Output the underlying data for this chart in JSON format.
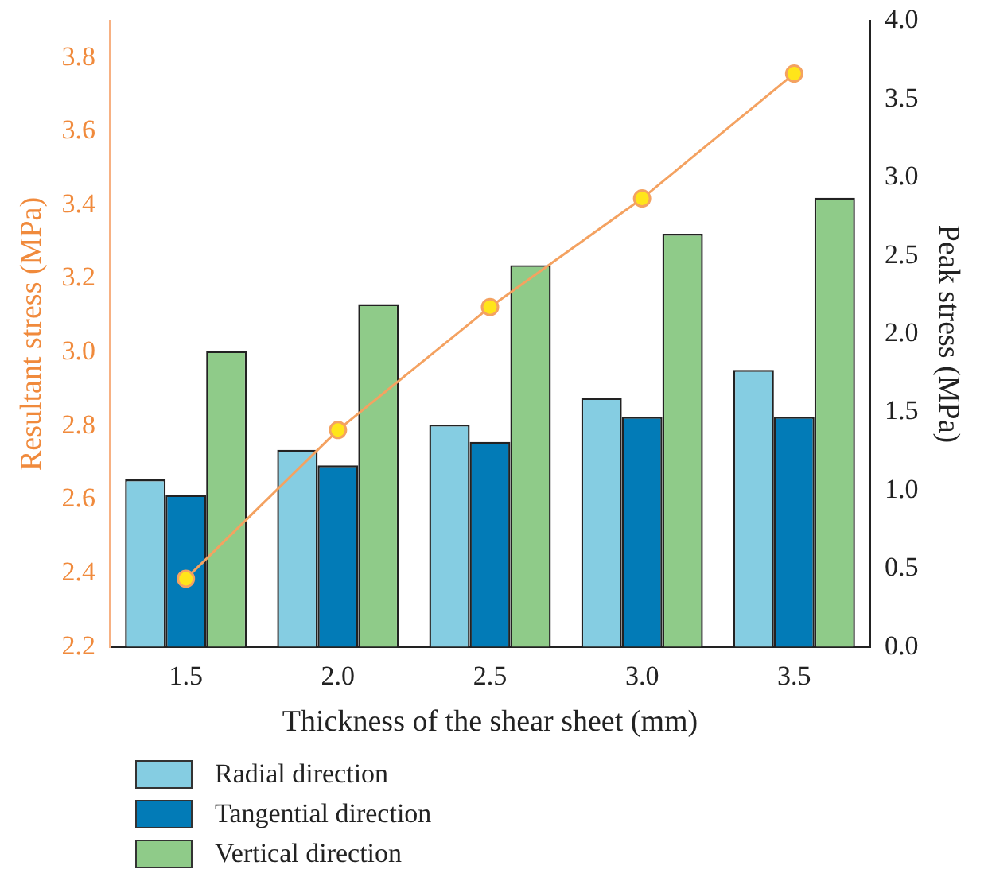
{
  "chart_data": {
    "type": "bar",
    "xlabel": "Thickness of the shear sheet (mm)",
    "ylabel": "Resultant stress (MPa)",
    "y2label": "Peak stress (MPa)",
    "categories": [
      "1.5",
      "2.0",
      "2.5",
      "3.0",
      "3.5"
    ],
    "series": [
      {
        "name": "Radial direction",
        "color": "#85cde2",
        "values": [
          1.07,
          1.26,
          1.42,
          1.59,
          1.77
        ],
        "axis": "y2"
      },
      {
        "name": "Tangential direction",
        "color": "#027bb7",
        "values": [
          0.97,
          1.16,
          1.31,
          1.47,
          1.47
        ],
        "axis": "y2"
      },
      {
        "name": "Vertical direction",
        "color": "#8fcb89",
        "values": [
          1.89,
          2.19,
          2.44,
          2.64,
          2.87
        ],
        "axis": "y2"
      },
      {
        "type": "line",
        "color": "#f4a261",
        "values": [
          2.385,
          2.789,
          3.123,
          3.418,
          3.757
        ],
        "axis": "y"
      }
    ],
    "ylim": [
      2.2,
      3.9
    ],
    "yticks": [
      2.2,
      2.4,
      2.6,
      2.8,
      {
        "value": 3,
        "label": "3.0"
      },
      3.2,
      3.4,
      3.6,
      3.8
    ],
    "y2lim": [
      0,
      4
    ],
    "y2ticks": [
      {
        "value": 0,
        "label": "0.0"
      },
      0.5,
      {
        "value": 1,
        "label": "1.0"
      },
      1.5,
      {
        "value": 2,
        "label": "2.0"
      },
      2.5,
      {
        "value": 3,
        "label": "3.0"
      },
      3.5,
      {
        "value": 4,
        "label": "4.0"
      }
    ],
    "marker": "circle",
    "grid": false,
    "legend": "bottom"
  }
}
